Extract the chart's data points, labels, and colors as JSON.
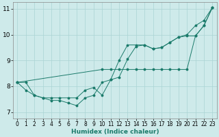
{
  "xlabel": "Humidex (Indice chaleur)",
  "bg_color": "#ceeaea",
  "line_color": "#1a7a6a",
  "grid_color": "#aad4d4",
  "xlim": [
    -0.5,
    23.5
  ],
  "ylim": [
    6.75,
    11.25
  ],
  "xticks": [
    0,
    1,
    2,
    3,
    4,
    5,
    6,
    7,
    8,
    9,
    10,
    11,
    12,
    13,
    14,
    15,
    16,
    17,
    18,
    19,
    20,
    21,
    22,
    23
  ],
  "yticks": [
    7,
    8,
    9,
    10,
    11
  ],
  "line1_x": [
    0,
    1,
    2,
    3,
    4,
    5,
    6,
    7,
    8,
    9,
    10,
    11,
    12,
    13,
    14,
    15,
    16,
    17,
    18,
    19,
    20,
    21,
    22,
    23
  ],
  "line1_y": [
    8.15,
    8.15,
    7.65,
    7.55,
    7.45,
    7.45,
    7.35,
    7.25,
    7.55,
    7.65,
    8.15,
    8.25,
    9.0,
    9.6,
    9.6,
    9.6,
    9.45,
    9.5,
    9.7,
    9.9,
    10.0,
    10.35,
    10.55,
    11.05
  ],
  "line2_x": [
    0,
    1,
    2,
    3,
    4,
    5,
    6,
    7,
    8,
    9,
    10,
    11,
    12,
    13,
    14,
    15,
    16,
    17,
    18,
    19,
    20,
    21,
    22,
    23
  ],
  "line2_y": [
    8.15,
    7.85,
    7.65,
    7.55,
    7.55,
    7.55,
    7.55,
    7.55,
    7.85,
    7.95,
    7.65,
    8.25,
    8.35,
    9.05,
    9.55,
    9.6,
    9.45,
    9.5,
    9.7,
    9.9,
    9.95,
    9.95,
    10.35,
    11.05
  ],
  "line3_x": [
    0,
    10,
    11,
    12,
    13,
    14,
    15,
    16,
    17,
    18,
    19,
    20,
    21,
    22,
    23
  ],
  "line3_y": [
    8.15,
    8.65,
    8.65,
    8.65,
    8.65,
    8.65,
    8.65,
    8.65,
    8.65,
    8.65,
    8.65,
    8.65,
    9.95,
    10.35,
    11.05
  ]
}
